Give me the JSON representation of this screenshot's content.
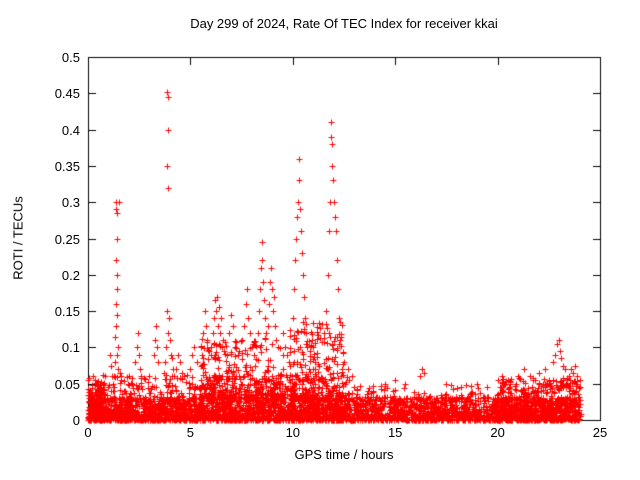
{
  "background": "#ffffff",
  "frame_color": "#000000",
  "chart_data": {
    "type": "scatter",
    "title": "Day 299 of 2024, Rate Of TEC Index for receiver kkai",
    "xlabel": "GPS time / hours",
    "ylabel": "ROTI / TECUs",
    "xlim": [
      0,
      25
    ],
    "ylim": [
      0,
      0.5
    ],
    "xticks": [
      "0",
      "5",
      "10",
      "15",
      "20",
      "25"
    ],
    "yticks": [
      "0",
      "0.05",
      "0.1",
      "0.15",
      "0.2",
      "0.25",
      "0.3",
      "0.35",
      "0.4",
      "0.45",
      "0.5"
    ],
    "grid": false,
    "legend": "none",
    "marker": "plus",
    "marker_color": "#ff0000",
    "points": [
      [
        1.05,
        0.09
      ],
      [
        1.1,
        0.075
      ],
      [
        1.15,
        0.06
      ],
      [
        1.2,
        0.05
      ],
      [
        1.25,
        0.06
      ],
      [
        1.3,
        0.08
      ],
      [
        1.33,
        0.115
      ],
      [
        1.35,
        0.29
      ],
      [
        1.36,
        0.16
      ],
      [
        1.37,
        0.22
      ],
      [
        1.38,
        0.3
      ],
      [
        1.39,
        0.13
      ],
      [
        1.4,
        0.285
      ],
      [
        1.4,
        0.18
      ],
      [
        1.41,
        0.09
      ],
      [
        1.42,
        0.25
      ],
      [
        1.43,
        0.145
      ],
      [
        1.44,
        0.2
      ],
      [
        1.46,
        0.1
      ],
      [
        1.48,
        0.07
      ],
      [
        1.5,
        0.3
      ],
      [
        1.55,
        0.065
      ],
      [
        1.6,
        0.055
      ],
      [
        2.3,
        0.08
      ],
      [
        2.4,
        0.1
      ],
      [
        2.45,
        0.12
      ],
      [
        2.5,
        0.09
      ],
      [
        2.55,
        0.07
      ],
      [
        2.6,
        0.06
      ],
      [
        3.2,
        0.09
      ],
      [
        3.25,
        0.11
      ],
      [
        3.3,
        0.13
      ],
      [
        3.35,
        0.1
      ],
      [
        3.4,
        0.08
      ],
      [
        3.87,
        0.35
      ],
      [
        3.88,
        0.452
      ],
      [
        3.9,
        0.445
      ],
      [
        3.92,
        0.4
      ],
      [
        3.93,
        0.32
      ],
      [
        3.85,
        0.15
      ],
      [
        3.95,
        0.14
      ],
      [
        3.9,
        0.12
      ],
      [
        3.8,
        0.1
      ],
      [
        4.0,
        0.11
      ],
      [
        4.05,
        0.09
      ],
      [
        3.75,
        0.08
      ],
      [
        4.1,
        0.085
      ],
      [
        4.15,
        0.07
      ],
      [
        3.7,
        0.065
      ],
      [
        4.2,
        0.06
      ],
      [
        4.3,
        0.07
      ],
      [
        4.4,
        0.09
      ],
      [
        4.5,
        0.08
      ],
      [
        4.6,
        0.065
      ],
      [
        5.0,
        0.07
      ],
      [
        5.1,
        0.09
      ],
      [
        5.2,
        0.1
      ],
      [
        5.3,
        0.08
      ],
      [
        5.5,
        0.1
      ],
      [
        5.6,
        0.12
      ],
      [
        5.7,
        0.15
      ],
      [
        5.75,
        0.13
      ],
      [
        5.8,
        0.11
      ],
      [
        5.9,
        0.095
      ],
      [
        6.0,
        0.1
      ],
      [
        6.1,
        0.12
      ],
      [
        6.15,
        0.14
      ],
      [
        6.2,
        0.165
      ],
      [
        6.25,
        0.15
      ],
      [
        6.3,
        0.17
      ],
      [
        6.35,
        0.13
      ],
      [
        6.4,
        0.155
      ],
      [
        6.45,
        0.12
      ],
      [
        6.5,
        0.14
      ],
      [
        6.55,
        0.1
      ],
      [
        6.6,
        0.11
      ],
      [
        6.8,
        0.09
      ],
      [
        6.9,
        0.12
      ],
      [
        7.0,
        0.145
      ],
      [
        7.1,
        0.13
      ],
      [
        7.2,
        0.1
      ],
      [
        7.3,
        0.09
      ],
      [
        7.5,
        0.11
      ],
      [
        7.6,
        0.13
      ],
      [
        7.7,
        0.16
      ],
      [
        7.75,
        0.18
      ],
      [
        7.8,
        0.14
      ],
      [
        7.9,
        0.12
      ],
      [
        8.0,
        0.1
      ],
      [
        8.1,
        0.09
      ],
      [
        8.3,
        0.12
      ],
      [
        8.35,
        0.15
      ],
      [
        8.4,
        0.18
      ],
      [
        8.45,
        0.21
      ],
      [
        8.5,
        0.245
      ],
      [
        8.52,
        0.22
      ],
      [
        8.55,
        0.19
      ],
      [
        8.6,
        0.165
      ],
      [
        8.65,
        0.14
      ],
      [
        8.7,
        0.12
      ],
      [
        8.8,
        0.13
      ],
      [
        8.85,
        0.16
      ],
      [
        8.9,
        0.19
      ],
      [
        8.95,
        0.21
      ],
      [
        9.0,
        0.18
      ],
      [
        9.05,
        0.15
      ],
      [
        9.1,
        0.17
      ],
      [
        9.15,
        0.13
      ],
      [
        9.2,
        0.11
      ],
      [
        9.3,
        0.1
      ],
      [
        9.5,
        0.12
      ],
      [
        9.6,
        0.1
      ],
      [
        9.7,
        0.09
      ],
      [
        9.8,
        0.08
      ],
      [
        10.0,
        0.14
      ],
      [
        10.05,
        0.18
      ],
      [
        10.1,
        0.22
      ],
      [
        10.15,
        0.25
      ],
      [
        10.2,
        0.28
      ],
      [
        10.25,
        0.3
      ],
      [
        10.3,
        0.36
      ],
      [
        10.32,
        0.33
      ],
      [
        10.35,
        0.29
      ],
      [
        10.4,
        0.26
      ],
      [
        10.45,
        0.23
      ],
      [
        10.5,
        0.2
      ],
      [
        10.55,
        0.17
      ],
      [
        10.6,
        0.14
      ],
      [
        10.65,
        0.12
      ],
      [
        10.7,
        0.1
      ],
      [
        11.0,
        0.1
      ],
      [
        11.1,
        0.08
      ],
      [
        11.5,
        0.12
      ],
      [
        11.6,
        0.15
      ],
      [
        11.7,
        0.2
      ],
      [
        11.75,
        0.26
      ],
      [
        11.8,
        0.3
      ],
      [
        11.85,
        0.41
      ],
      [
        11.88,
        0.39
      ],
      [
        11.9,
        0.38
      ],
      [
        11.92,
        0.35
      ],
      [
        11.95,
        0.33
      ],
      [
        12.0,
        0.3
      ],
      [
        12.05,
        0.28
      ],
      [
        12.1,
        0.26
      ],
      [
        12.15,
        0.22
      ],
      [
        12.2,
        0.18
      ],
      [
        12.25,
        0.14
      ],
      [
        12.3,
        0.11
      ],
      [
        12.5,
        0.08
      ],
      [
        12.7,
        0.07
      ],
      [
        12.9,
        0.06
      ],
      [
        14.5,
        0.05
      ],
      [
        15.0,
        0.055
      ],
      [
        15.5,
        0.05
      ],
      [
        16.2,
        0.06
      ],
      [
        16.3,
        0.07
      ],
      [
        16.4,
        0.065
      ],
      [
        17.5,
        0.05
      ],
      [
        18.2,
        0.045
      ],
      [
        19.0,
        0.05
      ],
      [
        19.5,
        0.045
      ],
      [
        20.2,
        0.06
      ],
      [
        20.5,
        0.055
      ],
      [
        21.0,
        0.06
      ],
      [
        21.3,
        0.07
      ],
      [
        21.6,
        0.06
      ],
      [
        22.0,
        0.065
      ],
      [
        22.3,
        0.07
      ],
      [
        22.7,
        0.08
      ],
      [
        22.8,
        0.09
      ],
      [
        22.9,
        0.105
      ],
      [
        23.0,
        0.11
      ],
      [
        23.05,
        0.095
      ],
      [
        23.1,
        0.085
      ],
      [
        23.2,
        0.075
      ],
      [
        23.3,
        0.07
      ],
      [
        23.5,
        0.06
      ],
      [
        23.6,
        0.07
      ],
      [
        23.7,
        0.065
      ],
      [
        23.8,
        0.075
      ],
      [
        23.9,
        0.06
      ],
      [
        24.0,
        0.055
      ]
    ],
    "noise_bands": [
      {
        "x0": 0.0,
        "x1": 24.05,
        "y0": 0.0,
        "y1": 0.032,
        "count": 2600,
        "bias": 1.4
      },
      {
        "x0": 0.0,
        "x1": 13.0,
        "y0": 0.0,
        "y1": 0.062,
        "count": 1100,
        "bias": 2.2
      },
      {
        "x0": 0.0,
        "x1": 0.8,
        "y0": 0.0,
        "y1": 0.05,
        "count": 160,
        "bias": 1.6
      },
      {
        "x0": 5.5,
        "x1": 9.6,
        "y0": 0.03,
        "y1": 0.115,
        "count": 320,
        "bias": 2.2
      },
      {
        "x0": 9.8,
        "x1": 12.45,
        "y0": 0.03,
        "y1": 0.135,
        "count": 240,
        "bias": 2.2
      },
      {
        "x0": 13.0,
        "x1": 20.0,
        "y0": 0.0,
        "y1": 0.048,
        "count": 240,
        "bias": 2.6
      },
      {
        "x0": 20.0,
        "x1": 24.05,
        "y0": 0.0,
        "y1": 0.058,
        "count": 520,
        "bias": 2.0
      }
    ]
  }
}
